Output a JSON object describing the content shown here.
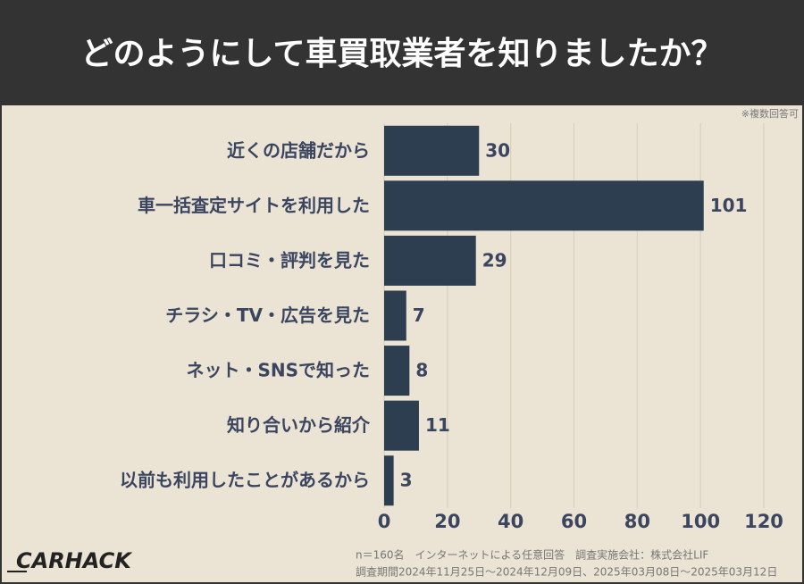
{
  "chart_data": {
    "type": "bar",
    "orientation": "horizontal",
    "title": "どのようにして車買取業者を知りましたか？",
    "annotation": "※複数回答可",
    "categories": [
      "近くの店舗だから",
      "車一括査定サイトを利用した",
      "口コミ・評判を見た",
      "チラシ・TV・広告を見た",
      "ネット・SNSで知った",
      "知り合いから紹介",
      "以前も利用したことがあるから"
    ],
    "values": [
      30,
      101,
      29,
      7,
      8,
      11,
      3
    ],
    "color": "#2c3e50",
    "xlim": [
      0,
      120
    ],
    "xticks": [
      0,
      20,
      40,
      60,
      80,
      100,
      120
    ],
    "grid": true
  },
  "footer": {
    "lines": [
      "n＝160名　インターネットによる任意回答　調査実施会社：株式会社LIF",
      "調査期間2024年11月25日～2024年12月09日、2025年03月08日～2025年03月12日"
    ],
    "logo": "CARHACK"
  }
}
